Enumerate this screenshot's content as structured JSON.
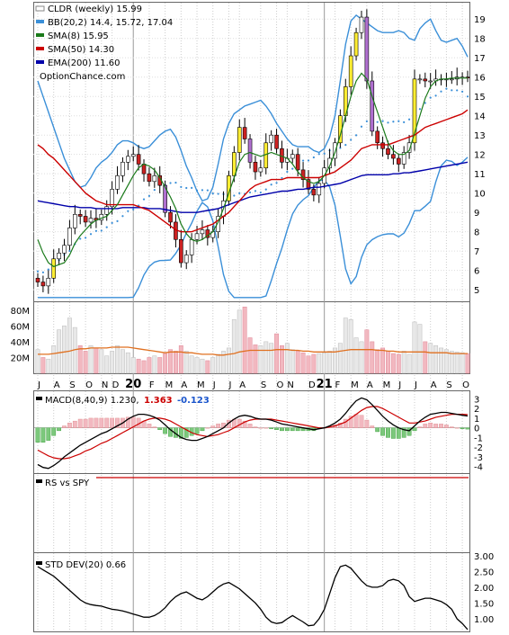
{
  "chart_data": [
    {
      "type": "candlestick",
      "panel": "price",
      "title": "CLDR (weekly) 15.99",
      "x_labels": [
        "J",
        "A",
        "S",
        "O",
        "N",
        "D",
        "20",
        "F",
        "M",
        "A",
        "M",
        "J",
        "J",
        "A",
        "S",
        "O",
        "N",
        "D",
        "21",
        "F",
        "M",
        "A",
        "M",
        "J",
        "J",
        "A",
        "S",
        "O"
      ],
      "yticks": [
        5,
        6,
        7,
        8,
        9,
        10,
        11,
        12,
        13,
        14,
        15,
        16,
        17,
        18,
        19
      ],
      "ylim": [
        4.45,
        19.8
      ],
      "legend": [
        {
          "label": "CLDR (weekly) 15.99",
          "color": "#ffffff"
        },
        {
          "label": "BB(20,2) 14.4, 15.72, 17.04",
          "color": "#3a8fd8"
        },
        {
          "label": "SMA(8) 15.95",
          "color": "#1a7a1a"
        },
        {
          "label": "SMA(50) 14.30",
          "color": "#cc0000"
        },
        {
          "label": "EMA(200) 11.60",
          "color": "#0000aa"
        },
        {
          "label": "OptionChance.com",
          "color": ""
        }
      ],
      "close": [
        5.4,
        5.2,
        5.6,
        6.6,
        6.9,
        7.3,
        8.2,
        8.9,
        8.8,
        8.5,
        8.7,
        8.6,
        8.9,
        9.3,
        10.2,
        10.9,
        11.6,
        11.9,
        12.0,
        11.5,
        11.0,
        10.6,
        10.9,
        10.4,
        9.0,
        8.5,
        7.6,
        6.4,
        6.8,
        7.6,
        7.9,
        8.1,
        7.7,
        8.0,
        8.8,
        9.6,
        10.9,
        12.1,
        13.4,
        12.8,
        11.6,
        11.1,
        11.3,
        12.6,
        13.0,
        12.3,
        11.6,
        11.8,
        12.0,
        11.2,
        10.7,
        10.2,
        9.9,
        10.5,
        11.3,
        11.8,
        12.6,
        14.0,
        15.5,
        17.1,
        18.3,
        19.1,
        15.8,
        13.2,
        12.6,
        12.3,
        12.0,
        11.8,
        11.5,
        12.1,
        12.6,
        15.9,
        15.9,
        15.8,
        15.8,
        15.9,
        15.9,
        15.9,
        15.9,
        16.0,
        16.0,
        15.99
      ],
      "sma8": [
        7.6,
        6.9,
        6.4,
        6.2,
        6.3,
        6.4,
        6.8,
        7.4,
        7.8,
        8.1,
        8.4,
        8.6,
        8.7,
        8.8,
        9.1,
        9.4,
        9.9,
        10.4,
        10.9,
        11.3,
        11.5,
        11.4,
        11.2,
        10.8,
        10.3,
        9.8,
        9.2,
        8.4,
        7.9,
        7.6,
        7.5,
        7.6,
        7.8,
        8.0,
        8.5,
        9.2,
        10.0,
        10.8,
        11.6,
        12.0,
        12.1,
        12.0,
        11.9,
        12.0,
        12.1,
        12.0,
        11.9,
        11.8,
        11.5,
        11.1,
        10.8,
        10.6,
        10.5,
        10.6,
        10.9,
        11.4,
        12.1,
        13.0,
        14.0,
        15.0,
        15.8,
        16.2,
        15.9,
        15.0,
        14.2,
        13.4,
        12.6,
        12.2,
        12.0,
        12.0,
        12.2,
        13.1,
        14.0,
        14.9,
        15.5,
        15.8,
        15.9,
        15.9,
        15.95,
        15.95,
        15.95,
        15.95
      ],
      "sma50": [
        12.5,
        12.3,
        12.0,
        11.8,
        11.5,
        11.2,
        10.9,
        10.6,
        10.3,
        10.0,
        9.8,
        9.6,
        9.5,
        9.4,
        9.4,
        9.4,
        9.4,
        9.4,
        9.4,
        9.3,
        9.2,
        9.1,
        8.9,
        8.7,
        8.5,
        8.3,
        8.1,
        8.0,
        8.0,
        8.0,
        8.1,
        8.2,
        8.3,
        8.4,
        8.6,
        8.8,
        9.0,
        9.3,
        9.6,
        9.9,
        10.2,
        10.4,
        10.5,
        10.6,
        10.7,
        10.7,
        10.7,
        10.8,
        10.8,
        10.8,
        10.8,
        10.8,
        10.8,
        10.8,
        10.9,
        11.0,
        11.1,
        11.3,
        11.5,
        11.7,
        12.0,
        12.3,
        12.4,
        12.5,
        12.5,
        12.5,
        12.5,
        12.6,
        12.7,
        12.8,
        12.9,
        13.0,
        13.2,
        13.4,
        13.5,
        13.6,
        13.7,
        13.8,
        13.9,
        14.0,
        14.1,
        14.3
      ],
      "ema200": [
        9.6,
        9.55,
        9.5,
        9.45,
        9.4,
        9.35,
        9.3,
        9.3,
        9.25,
        9.25,
        9.25,
        9.2,
        9.2,
        9.2,
        9.2,
        9.2,
        9.25,
        9.25,
        9.25,
        9.25,
        9.25,
        9.2,
        9.2,
        9.2,
        9.15,
        9.1,
        9.05,
        9.0,
        9.0,
        9.0,
        9.0,
        9.05,
        9.1,
        9.15,
        9.2,
        9.3,
        9.4,
        9.5,
        9.6,
        9.7,
        9.8,
        9.85,
        9.9,
        9.95,
        10.0,
        10.05,
        10.1,
        10.1,
        10.15,
        10.2,
        10.2,
        10.25,
        10.3,
        10.3,
        10.35,
        10.4,
        10.45,
        10.5,
        10.6,
        10.7,
        10.8,
        10.9,
        10.95,
        10.95,
        10.95,
        10.95,
        10.95,
        11.0,
        11.0,
        11.05,
        11.05,
        11.1,
        11.15,
        11.2,
        11.25,
        11.3,
        11.35,
        11.4,
        11.45,
        11.5,
        11.55,
        11.6
      ],
      "bb_upper": [
        15.8,
        15.0,
        14.2,
        13.4,
        12.6,
        11.8,
        11.2,
        10.6,
        10.3,
        10.4,
        10.8,
        11.3,
        11.6,
        11.8,
        12.1,
        12.5,
        12.7,
        12.7,
        12.6,
        12.4,
        12.3,
        12.4,
        12.7,
        13.0,
        13.2,
        13.3,
        12.9,
        12.2,
        11.4,
        10.8,
        10.1,
        9.6,
        9.7,
        10.3,
        11.5,
        12.8,
        13.6,
        14.1,
        14.3,
        14.5,
        14.6,
        14.7,
        14.8,
        14.5,
        14.1,
        13.6,
        13.2,
        12.8,
        12.5,
        12.4,
        12.4,
        12.4,
        12.2,
        12.1,
        12.3,
        12.9,
        14.0,
        15.8,
        17.7,
        18.9,
        19.2,
        19.0,
        18.8,
        18.6,
        18.4,
        18.3,
        18.3,
        18.3,
        18.4,
        18.3,
        18.0,
        17.9,
        18.5,
        18.8,
        19.0,
        18.4,
        17.9,
        17.8,
        17.9,
        18.0,
        17.6,
        17.04
      ],
      "bb_lower": [
        null,
        null,
        null,
        null,
        null,
        null,
        null,
        null,
        null,
        null,
        null,
        null,
        null,
        null,
        null,
        null,
        null,
        null,
        null,
        null,
        null,
        null,
        null,
        null,
        null,
        null,
        null,
        null,
        null,
        null,
        null,
        null,
        null,
        null,
        null,
        null,
        null,
        null,
        null,
        null,
        null,
        null,
        null,
        null,
        null,
        null,
        null,
        null,
        null,
        null,
        null,
        null,
        null,
        null,
        null,
        null,
        null,
        null,
        null,
        null,
        null,
        null,
        null,
        null,
        null,
        null,
        null,
        null,
        null,
        null,
        null,
        null,
        null,
        null,
        null,
        null,
        null,
        null,
        null,
        null,
        null,
        14.4
      ]
    },
    {
      "type": "bar",
      "panel": "volume",
      "yticks_labels": [
        "20M",
        "40M",
        "60M",
        "80M"
      ],
      "yticks": [
        20,
        40,
        60,
        80
      ],
      "ylim": [
        0,
        90
      ],
      "values": [
        30,
        20,
        18,
        35,
        55,
        60,
        70,
        58,
        35,
        28,
        35,
        32,
        30,
        22,
        28,
        35,
        30,
        26,
        20,
        18,
        16,
        20,
        22,
        20,
        25,
        30,
        28,
        35,
        28,
        22,
        20,
        18,
        16,
        20,
        24,
        28,
        32,
        68,
        80,
        84,
        45,
        36,
        35,
        40,
        38,
        50,
        35,
        38,
        30,
        28,
        26,
        22,
        24,
        25,
        26,
        28,
        32,
        38,
        70,
        68,
        45,
        40,
        55,
        40,
        30,
        32,
        28,
        25,
        24,
        28,
        24,
        65,
        62,
        40,
        38,
        35,
        32,
        30,
        28,
        27,
        26,
        25
      ],
      "ma": [
        24,
        24,
        24,
        25,
        26,
        27,
        28,
        30,
        31,
        31,
        32,
        32,
        32,
        32,
        33,
        33,
        33,
        33,
        32,
        31,
        30,
        29,
        28,
        27,
        26,
        27,
        27,
        27,
        26,
        26,
        25,
        24,
        24,
        24,
        23,
        23,
        24,
        25,
        27,
        28,
        29,
        29,
        29,
        29,
        29,
        30,
        30,
        30,
        29,
        29,
        28,
        28,
        27,
        27,
        27,
        27,
        27,
        28,
        29,
        30,
        30,
        30,
        30,
        30,
        29,
        29,
        28,
        28,
        27,
        27,
        27,
        27,
        27,
        27,
        26,
        26,
        26,
        26,
        25,
        25,
        25,
        25
      ]
    },
    {
      "type": "line",
      "panel": "macd",
      "legend": {
        "label": "MACD(8,40,9) 1.230,",
        "signal": "1.363",
        "hist": "-0.123"
      },
      "yticks": [
        3,
        2,
        1,
        0,
        -1,
        -2,
        -3,
        -4
      ],
      "ylim": [
        -4.5,
        3.6
      ],
      "macd": [
        -3.8,
        -4.1,
        -4.2,
        -3.9,
        -3.5,
        -3.0,
        -2.6,
        -2.2,
        -1.8,
        -1.5,
        -1.2,
        -0.9,
        -0.6,
        -0.4,
        -0.1,
        0.2,
        0.5,
        0.9,
        1.2,
        1.4,
        1.4,
        1.3,
        1.1,
        0.8,
        0.3,
        -0.2,
        -0.6,
        -1.0,
        -1.2,
        -1.3,
        -1.3,
        -1.1,
        -0.9,
        -0.6,
        -0.3,
        0.0,
        0.5,
        0.9,
        1.2,
        1.3,
        1.2,
        1.0,
        0.9,
        0.9,
        0.8,
        0.6,
        0.4,
        0.3,
        0.2,
        0.1,
        0.0,
        -0.1,
        -0.2,
        -0.1,
        0.0,
        0.2,
        0.5,
        0.9,
        1.5,
        2.2,
        2.8,
        3.1,
        2.9,
        2.4,
        1.8,
        1.2,
        0.7,
        0.3,
        0.0,
        -0.2,
        -0.3,
        0.2,
        0.7,
        1.1,
        1.4,
        1.5,
        1.6,
        1.6,
        1.5,
        1.4,
        1.3,
        1.23
      ],
      "signal": [
        -2.3,
        -2.6,
        -2.9,
        -3.1,
        -3.2,
        -3.2,
        -3.1,
        -2.9,
        -2.7,
        -2.4,
        -2.2,
        -1.9,
        -1.6,
        -1.4,
        -1.1,
        -0.8,
        -0.5,
        -0.2,
        0.1,
        0.4,
        0.7,
        0.9,
        1.0,
        1.0,
        0.9,
        0.7,
        0.4,
        0.1,
        -0.2,
        -0.5,
        -0.7,
        -0.8,
        -0.9,
        -0.8,
        -0.7,
        -0.5,
        -0.3,
        0.0,
        0.3,
        0.6,
        0.8,
        0.9,
        0.9,
        0.9,
        0.9,
        0.8,
        0.7,
        0.6,
        0.5,
        0.4,
        0.3,
        0.2,
        0.1,
        0.0,
        0.0,
        0.1,
        0.2,
        0.4,
        0.6,
        1.0,
        1.4,
        1.8,
        2.1,
        2.2,
        2.2,
        2.0,
        1.7,
        1.4,
        1.1,
        0.8,
        0.5,
        0.5,
        0.6,
        0.7,
        0.9,
        1.1,
        1.2,
        1.3,
        1.4,
        1.4,
        1.4,
        1.363
      ]
    },
    {
      "type": "line",
      "panel": "rs",
      "legend": "RS vs SPY"
    },
    {
      "type": "line",
      "panel": "stddev",
      "legend": "STD DEV(20) 0.66",
      "yticks_labels": [
        "1.00",
        "1.50",
        "2.00",
        "2.50",
        "3.00"
      ],
      "yticks": [
        1.0,
        1.5,
        2.0,
        2.5,
        3.0
      ],
      "ylim": [
        0.6,
        3.05
      ],
      "values": [
        2.65,
        2.55,
        2.45,
        2.35,
        2.2,
        2.05,
        1.9,
        1.75,
        1.6,
        1.5,
        1.45,
        1.42,
        1.4,
        1.35,
        1.3,
        1.28,
        1.25,
        1.2,
        1.15,
        1.1,
        1.05,
        1.05,
        1.1,
        1.2,
        1.35,
        1.55,
        1.7,
        1.8,
        1.85,
        1.75,
        1.65,
        1.6,
        1.7,
        1.85,
        2.0,
        2.1,
        2.15,
        2.05,
        1.95,
        1.8,
        1.65,
        1.5,
        1.3,
        1.05,
        0.9,
        0.85,
        0.88,
        1.0,
        1.1,
        1.0,
        0.9,
        0.78,
        0.8,
        1.0,
        1.3,
        1.8,
        2.3,
        2.65,
        2.7,
        2.6,
        2.4,
        2.2,
        2.05,
        2.0,
        2.0,
        2.05,
        2.2,
        2.25,
        2.2,
        2.05,
        1.7,
        1.55,
        1.6,
        1.65,
        1.65,
        1.6,
        1.55,
        1.45,
        1.3,
        1.0,
        0.85,
        0.66
      ]
    }
  ]
}
